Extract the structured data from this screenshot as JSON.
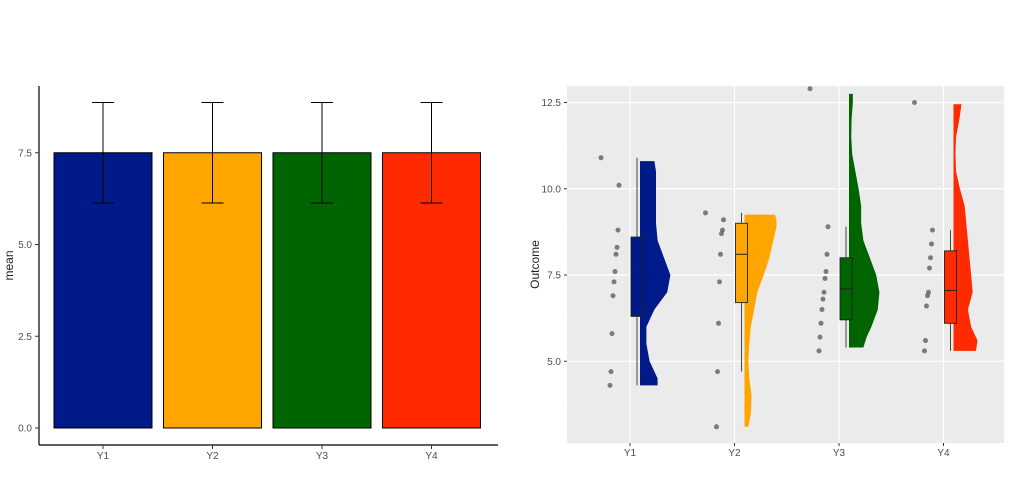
{
  "chart_data": [
    {
      "type": "bar",
      "categories": [
        "Y1",
        "Y2",
        "Y3",
        "Y4"
      ],
      "values": [
        7.5,
        7.5,
        7.5,
        7.5
      ],
      "error_low": [
        6.13,
        6.13,
        6.13,
        6.13
      ],
      "error_high": [
        8.87,
        8.87,
        8.87,
        8.87
      ],
      "colors": [
        "#001a8a",
        "#ffa500",
        "#006400",
        "#ff2a00"
      ],
      "ylabel": "mean",
      "xlabel": "",
      "ylim": [
        0,
        9.2
      ],
      "yticks": [
        0.0,
        2.5,
        5.0,
        7.5
      ],
      "ytick_labels": [
        "0.0",
        "2.5",
        "5.0",
        "7.5"
      ],
      "grid": false,
      "theme": "classic"
    },
    {
      "type": "raincloud",
      "categories": [
        "Y1",
        "Y2",
        "Y3",
        "Y4"
      ],
      "colors": [
        "#001a8a",
        "#ffa500",
        "#006400",
        "#ff2a00"
      ],
      "ylabel": "Outcome",
      "xlabel": "",
      "ylim": [
        2.5,
        13.3
      ],
      "yticks": [
        5.0,
        7.5,
        10.0,
        12.5
      ],
      "ytick_labels": [
        "5.0",
        "7.5",
        "10.0",
        "12.5"
      ],
      "grid": true,
      "theme": "grey",
      "points": [
        [
          10.9,
          10.1,
          8.8,
          8.3,
          8.1,
          7.6,
          7.3,
          6.9,
          5.8,
          4.7,
          4.3
        ],
        [
          9.3,
          9.1,
          8.8,
          8.7,
          8.1,
          7.3,
          6.1,
          4.7,
          3.1
        ],
        [
          12.9,
          8.9,
          8.1,
          7.6,
          7.4,
          7.0,
          6.8,
          6.5,
          6.1,
          5.7,
          5.3
        ],
        [
          12.5,
          8.8,
          8.4,
          8.0,
          7.7,
          7.0,
          6.9,
          6.6,
          5.6,
          5.3
        ]
      ],
      "boxes": [
        {
          "whisker_low": 4.3,
          "q1": 6.3,
          "median": 7.6,
          "q3": 8.6,
          "whisker_high": 10.9
        },
        {
          "whisker_low": 4.7,
          "q1": 6.7,
          "median": 8.1,
          "q3": 9.0,
          "whisker_high": 9.3
        },
        {
          "whisker_low": 5.4,
          "q1": 6.2,
          "median": 7.1,
          "q3": 8.0,
          "whisker_high": 8.9
        },
        {
          "whisker_low": 5.3,
          "q1": 6.1,
          "median": 7.05,
          "q3": 8.2,
          "whisker_high": 8.8
        }
      ],
      "densities": [
        {
          "y": [
            4.3,
            4.5,
            5.0,
            5.5,
            6.0,
            6.5,
            7.0,
            7.5,
            8.0,
            8.5,
            9.0,
            9.5,
            10.0,
            10.5,
            10.8
          ],
          "d": [
            0.55,
            0.55,
            0.3,
            0.2,
            0.2,
            0.45,
            0.85,
            0.95,
            0.75,
            0.55,
            0.5,
            0.5,
            0.5,
            0.5,
            0.45
          ]
        },
        {
          "y": [
            3.1,
            3.5,
            4.0,
            4.5,
            5.0,
            5.5,
            6.0,
            6.5,
            7.0,
            7.5,
            8.0,
            8.5,
            8.9,
            9.1,
            9.25
          ],
          "d": [
            0.12,
            0.2,
            0.22,
            0.15,
            0.12,
            0.15,
            0.2,
            0.3,
            0.4,
            0.6,
            0.78,
            0.9,
            1.0,
            1.0,
            0.95
          ]
        },
        {
          "y": [
            5.4,
            5.7,
            6.0,
            6.5,
            7.0,
            7.5,
            8.0,
            8.5,
            9.0,
            9.5,
            10.0,
            10.5,
            11.0,
            11.5,
            12.0,
            12.5,
            12.75
          ],
          "d": [
            0.45,
            0.55,
            0.7,
            0.9,
            0.95,
            0.85,
            0.65,
            0.45,
            0.38,
            0.38,
            0.3,
            0.2,
            0.1,
            0.07,
            0.08,
            0.12,
            0.12
          ]
        },
        {
          "y": [
            5.3,
            5.6,
            6.0,
            6.5,
            7.0,
            7.5,
            8.0,
            8.5,
            9.0,
            9.5,
            10.0,
            10.5,
            11.0,
            11.5,
            12.0,
            12.45
          ],
          "d": [
            0.7,
            0.75,
            0.55,
            0.45,
            0.6,
            0.55,
            0.5,
            0.45,
            0.4,
            0.35,
            0.2,
            0.08,
            0.06,
            0.08,
            0.18,
            0.25
          ]
        }
      ]
    }
  ]
}
